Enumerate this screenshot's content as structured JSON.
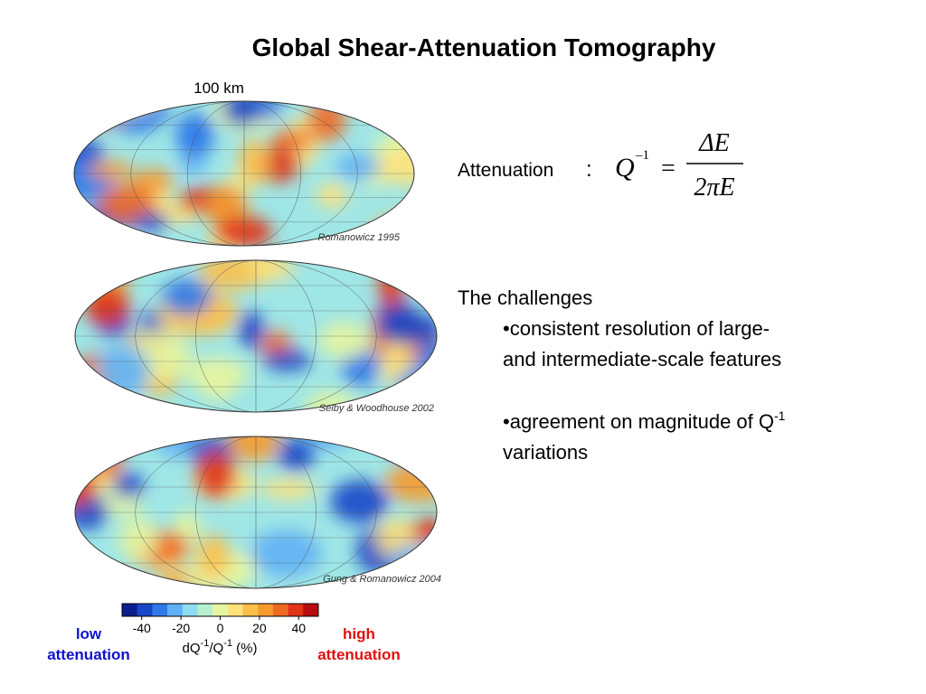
{
  "title": "Global Shear-Attenuation Tomography",
  "maps": [
    {
      "label": "100 km",
      "caption": "Romanowicz 1995"
    },
    {
      "caption": "Selby & Woodhouse 2002"
    },
    {
      "caption": "Gung & Romanowicz 2004"
    }
  ],
  "formula": {
    "prefix": "Attenuation",
    "colon": ":",
    "lhs": "Q",
    "exponent": "–1",
    "equals": "=",
    "numerator": "ΔE",
    "denominator": "2πE"
  },
  "challenges": {
    "heading": "The challenges",
    "bullet1": [
      "•consistent resolution of large-",
      "and intermediate-scale features"
    ],
    "bullet2": {
      "text": "•agreement on magnitude of Q",
      "sup": "-1",
      "line2": "variations"
    }
  },
  "colorbar": {
    "range": [
      -50,
      50
    ],
    "ticks": [
      -40,
      -20,
      0,
      20,
      40
    ],
    "colors": [
      "#0a1f8f",
      "#1747c8",
      "#2f78e8",
      "#5fb0f5",
      "#8fdcf2",
      "#b6f0d0",
      "#e6f5a0",
      "#ffe27a",
      "#fcc04a",
      "#f69a2e",
      "#ef6a22",
      "#e03318",
      "#b80d10"
    ],
    "label": {
      "a": "dQ",
      "sup1": "-1",
      "b": "/Q",
      "sup2": "-1",
      "c": " (%)"
    },
    "low": [
      "low",
      "attenuation"
    ],
    "high": [
      "high",
      "attenuation"
    ]
  }
}
